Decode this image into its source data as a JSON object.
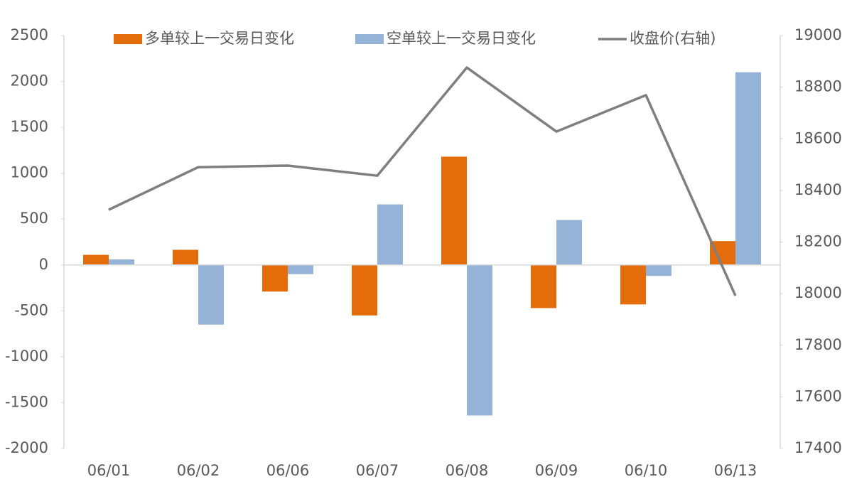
{
  "chart_data": {
    "type": "bar",
    "categories": [
      "06/01",
      "06/02",
      "06/06",
      "06/07",
      "06/08",
      "06/09",
      "06/10",
      "06/13"
    ],
    "series": [
      {
        "name": "多单较上一交易日变化",
        "type": "bar",
        "color": "#e46c0a",
        "values": [
          110,
          165,
          -290,
          -550,
          1180,
          -470,
          -430,
          260
        ]
      },
      {
        "name": "空单较上一交易日变化",
        "type": "bar",
        "color": "#95b3d7",
        "values": [
          60,
          -650,
          -100,
          660,
          -1640,
          490,
          -120,
          2100
        ]
      },
      {
        "name": "收盘价(右轴)",
        "type": "line",
        "axis": "y2",
        "color": "#7f7f7f",
        "values": [
          18325,
          18490,
          18496,
          18457,
          18876,
          18628,
          18769,
          17992
        ]
      }
    ],
    "ylim": [
      -2000,
      2500
    ],
    "yticks": [
      -2000,
      -1500,
      -1000,
      -500,
      0,
      500,
      1000,
      1500,
      2000,
      2500
    ],
    "y2lim": [
      17400,
      19000
    ],
    "y2ticks": [
      17400,
      17600,
      17800,
      18000,
      18200,
      18400,
      18600,
      18800,
      19000
    ],
    "legend": "top",
    "grid": false
  }
}
